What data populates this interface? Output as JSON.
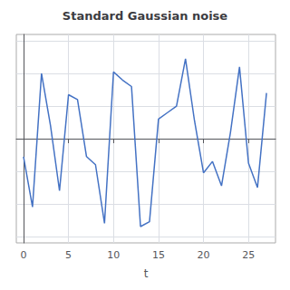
{
  "chart_data": {
    "type": "line",
    "title": "Standard Gaussian noise",
    "xlabel": "t",
    "x": [
      0,
      1,
      2,
      3,
      4,
      5,
      6,
      7,
      8,
      9,
      10,
      11,
      12,
      13,
      14,
      15,
      16,
      17,
      18,
      19,
      20,
      21,
      22,
      23,
      24,
      25,
      26,
      27
    ],
    "values": [
      -0.55,
      -2.1,
      2.0,
      0.4,
      -1.6,
      1.35,
      1.2,
      -0.55,
      -0.8,
      -2.6,
      2.05,
      1.8,
      1.6,
      -2.7,
      -2.55,
      0.6,
      0.8,
      1.0,
      2.45,
      0.55,
      -1.05,
      -0.7,
      -1.45,
      0.2,
      2.2,
      -0.75,
      -1.5,
      1.4
    ],
    "color": "#4472c4",
    "xlim": [
      -0.8,
      28
    ],
    "xticks": [
      0,
      5,
      10,
      15,
      20,
      25
    ],
    "ylim": [
      -3.2,
      3.2
    ],
    "yticks": [
      -3,
      -2,
      -1,
      0,
      1,
      2,
      3
    ],
    "grid": true,
    "tick_labels": "x"
  }
}
